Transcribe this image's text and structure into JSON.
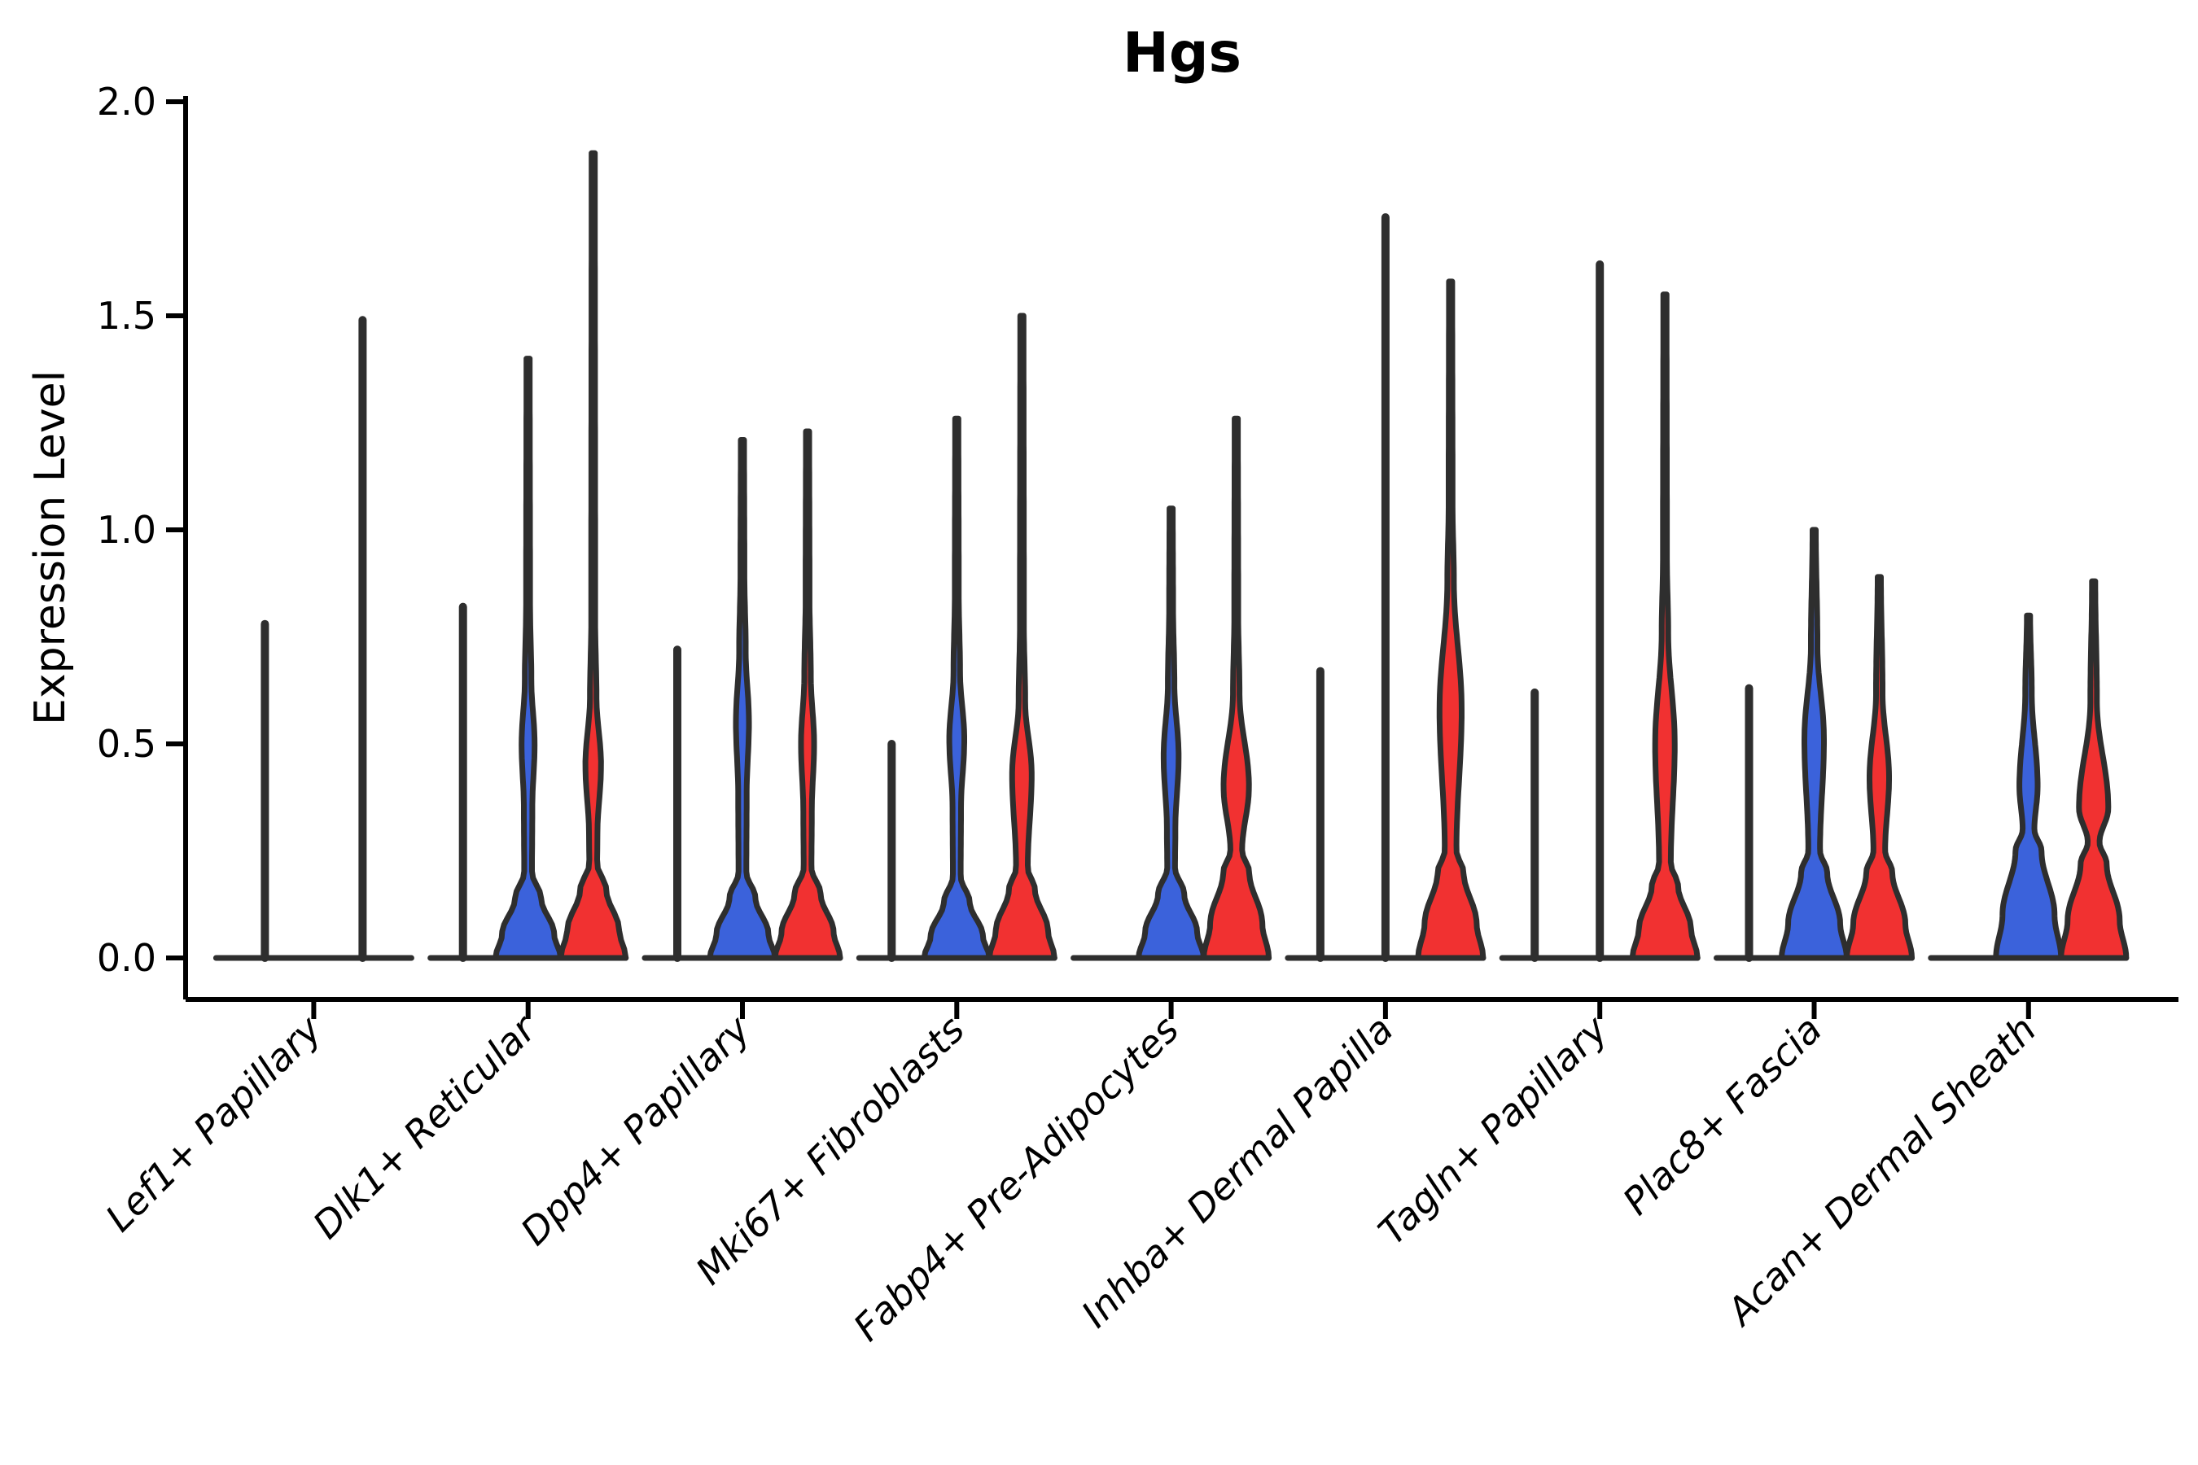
{
  "chart_data": {
    "type": "violin",
    "title": "Hgs",
    "ylabel": "Expression Level",
    "ylim": [
      0,
      2.0
    ],
    "yticks": [
      0.0,
      0.5,
      1.0,
      1.5,
      2.0
    ],
    "legend_position": "none",
    "grid": false,
    "colors": {
      "blue": "#3B62DB",
      "red": "#F13131",
      "spike_line": "#2E2E2E",
      "axis": "#000000",
      "background": "#FFFFFF"
    },
    "categories": [
      {
        "label": "Lef1+ Papillary",
        "violins": [
          {
            "series": "blue",
            "kind": "line",
            "max": 0.78,
            "offset": -60,
            "halfwidth": 60
          },
          {
            "series": "red",
            "kind": "line",
            "max": 1.49,
            "offset": 60,
            "halfwidth": 60
          }
        ]
      },
      {
        "label": "Dlk1+ Reticular",
        "violins": [
          {
            "series": "extra",
            "kind": "line",
            "max": 0.82,
            "offset": -80,
            "halfwidth": 40
          },
          {
            "series": "blue",
            "kind": "body",
            "max": 1.4,
            "offset": 0,
            "halfwidth": 40,
            "bulge_center": 0.5,
            "bulge_halfspan": 0.15,
            "bulge_peak": 0.2,
            "base_top": 0.14
          },
          {
            "series": "red",
            "kind": "body",
            "max": 1.88,
            "offset": 80,
            "halfwidth": 40,
            "bulge_center": 0.45,
            "bulge_halfspan": 0.16,
            "bulge_peak": 0.24,
            "base_top": 0.16
          }
        ]
      },
      {
        "label": "Dpp4+ Papillary",
        "violins": [
          {
            "series": "extra",
            "kind": "line",
            "max": 0.72,
            "offset": -80,
            "halfwidth": 40
          },
          {
            "series": "blue",
            "kind": "body",
            "max": 1.21,
            "offset": 0,
            "halfwidth": 40,
            "bulge_center": 0.55,
            "bulge_halfspan": 0.17,
            "bulge_peak": 0.2,
            "base_top": 0.14
          },
          {
            "series": "red",
            "kind": "body",
            "max": 1.23,
            "offset": 80,
            "halfwidth": 40,
            "bulge_center": 0.5,
            "bulge_halfspan": 0.16,
            "bulge_peak": 0.2,
            "base_top": 0.15
          }
        ]
      },
      {
        "label": "Mki67+ Fibroblasts",
        "violins": [
          {
            "series": "extra",
            "kind": "line",
            "max": 0.5,
            "offset": -80,
            "halfwidth": 40
          },
          {
            "series": "blue",
            "kind": "body",
            "max": 1.26,
            "offset": 0,
            "halfwidth": 40,
            "bulge_center": 0.51,
            "bulge_halfspan": 0.16,
            "bulge_peak": 0.23,
            "base_top": 0.13
          },
          {
            "series": "red",
            "kind": "body",
            "max": 1.5,
            "offset": 80,
            "halfwidth": 40,
            "bulge_center": 0.43,
            "bulge_halfspan": 0.17,
            "bulge_peak": 0.3,
            "base_top": 0.16
          }
        ]
      },
      {
        "label": "Fabp4+ Pre-Adipocytes",
        "violins": [
          {
            "series": "extra",
            "kind": "flat",
            "max": 0.0,
            "offset": -80,
            "halfwidth": 40
          },
          {
            "series": "blue",
            "kind": "body",
            "max": 1.05,
            "offset": 0,
            "halfwidth": 40,
            "bulge_center": 0.47,
            "bulge_halfspan": 0.17,
            "bulge_peak": 0.23,
            "base_top": 0.15
          },
          {
            "series": "red",
            "kind": "body",
            "max": 1.26,
            "offset": 80,
            "halfwidth": 40,
            "bulge_center": 0.4,
            "bulge_halfspan": 0.22,
            "bulge_peak": 0.39,
            "base_top": 0.2
          }
        ]
      },
      {
        "label": "Inhba+ Dermal Papilla",
        "violins": [
          {
            "series": "extra",
            "kind": "line",
            "max": 0.67,
            "offset": -80,
            "halfwidth": 40
          },
          {
            "series": "blue",
            "kind": "line",
            "max": 1.73,
            "offset": 0,
            "halfwidth": 40
          },
          {
            "series": "red",
            "kind": "body",
            "max": 1.58,
            "offset": 80,
            "halfwidth": 40,
            "bulge_center": 0.58,
            "bulge_halfspan": 0.3,
            "bulge_peak": 0.34,
            "base_top": 0.2
          }
        ]
      },
      {
        "label": "Tagln+ Papillary",
        "violins": [
          {
            "series": "extra",
            "kind": "line",
            "max": 0.62,
            "offset": -80,
            "halfwidth": 40
          },
          {
            "series": "blue",
            "kind": "line",
            "max": 1.62,
            "offset": 0,
            "halfwidth": 40
          },
          {
            "series": "red",
            "kind": "body",
            "max": 1.55,
            "offset": 80,
            "halfwidth": 40,
            "bulge_center": 0.5,
            "bulge_halfspan": 0.26,
            "bulge_peak": 0.3,
            "base_top": 0.17
          }
        ]
      },
      {
        "label": "Plac8+ Fascia",
        "violins": [
          {
            "series": "extra",
            "kind": "line",
            "max": 0.63,
            "offset": -80,
            "halfwidth": 40
          },
          {
            "series": "blue",
            "kind": "body",
            "max": 1.0,
            "offset": 0,
            "halfwidth": 40,
            "bulge_center": 0.51,
            "bulge_halfspan": 0.22,
            "bulge_peak": 0.3,
            "base_top": 0.2
          },
          {
            "series": "red",
            "kind": "body",
            "max": 0.89,
            "offset": 80,
            "halfwidth": 40,
            "bulge_center": 0.42,
            "bulge_halfspan": 0.2,
            "bulge_peak": 0.3,
            "base_top": 0.2
          }
        ]
      },
      {
        "label": "Acan+ Dermal Sheath",
        "violins": [
          {
            "series": "extra",
            "kind": "flat",
            "max": 0.0,
            "offset": -80,
            "halfwidth": 40
          },
          {
            "series": "blue",
            "kind": "body",
            "max": 0.8,
            "offset": 0,
            "halfwidth": 40,
            "bulge_center": 0.4,
            "bulge_halfspan": 0.22,
            "bulge_peak": 0.28,
            "base_top": 0.25
          },
          {
            "series": "red",
            "kind": "body",
            "max": 0.88,
            "offset": 80,
            "halfwidth": 40,
            "bulge_center": 0.35,
            "bulge_halfspan": 0.25,
            "bulge_peak": 0.45,
            "base_top": 0.22
          }
        ]
      }
    ]
  }
}
